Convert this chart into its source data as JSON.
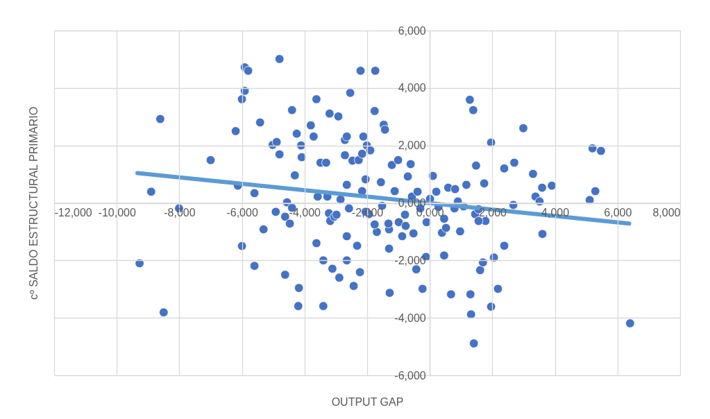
{
  "chart_data": {
    "type": "scatter",
    "xlabel": "OUTPUT GAP",
    "ylabel": "cº SALDO ESTRUCTURAL PRIMARIO",
    "xlim": [
      -12,
      8
    ],
    "ylim": [
      -6,
      6
    ],
    "xticks": [
      {
        "value": -12,
        "label": "-12,000"
      },
      {
        "value": -10,
        "label": "-10,000"
      },
      {
        "value": -8,
        "label": "-8,000"
      },
      {
        "value": -6,
        "label": "-6,000"
      },
      {
        "value": -4,
        "label": "-4,000"
      },
      {
        "value": -2,
        "label": "-2,000"
      },
      {
        "value": 0,
        "label": "0,000"
      },
      {
        "value": 2,
        "label": "2,000"
      },
      {
        "value": 4,
        "label": "4,000"
      },
      {
        "value": 6,
        "label": "6,000"
      },
      {
        "value": 8,
        "label": "8,000"
      }
    ],
    "yticks": [
      {
        "value": -6,
        "label": "-6,000"
      },
      {
        "value": -4,
        "label": "-4,000"
      },
      {
        "value": -2,
        "label": "-2,000"
      },
      {
        "value": 0,
        "label": "0,000"
      },
      {
        "value": 2,
        "label": "2,000"
      },
      {
        "value": 4,
        "label": "4,000"
      },
      {
        "value": 6,
        "label": "6,000"
      }
    ],
    "grid": true,
    "series": [
      {
        "type": "scatter",
        "color": "#4472c4",
        "marker": "circle",
        "x": [
          -9.27,
          -8.9,
          -8.61,
          -8.5,
          -8.01,
          -7,
          -6.13,
          -6,
          -5.91,
          -5.8,
          -5.91,
          -6,
          -6.2,
          -5.6,
          -5.6,
          -5.42,
          -5.31,
          -5.02,
          -4.89,
          -4.8,
          -4.8,
          -4.92,
          -4.62,
          -4.62,
          -4.56,
          -4.47,
          -4.4,
          -4.4,
          -4.31,
          -4.25,
          -4.2,
          -4.18,
          -4.11,
          -4.09,
          -3.8,
          -3.71,
          -3.62,
          -3.62,
          -3.58,
          -3.49,
          -3.4,
          -3.4,
          -3.31,
          -3.27,
          -3.22,
          -3.2,
          -3.18,
          -3.11,
          -3.05,
          -2.98,
          -2.92,
          -2.89,
          -2.85,
          -2.71,
          -2.71,
          -2.65,
          -2.65,
          -2.65,
          -2.65,
          -2.58,
          -2.54,
          -2.47,
          -2.43,
          -2.32,
          -2.27,
          -2.23,
          -2.21,
          -2.16,
          -2.16,
          -2.12,
          -2.05,
          -2.01,
          -1.94,
          -1.9,
          -1.76,
          -1.74,
          -1.69,
          -1.56,
          -1.52,
          -1.47,
          -1.43,
          -1.3,
          -1.28,
          -1.3,
          -1.21,
          -1.12,
          -1.01,
          -0.88,
          -0.79,
          -0.7,
          -0.61,
          -0.57,
          -0.52,
          -0.43,
          -0.39,
          -0.23,
          -0.12,
          0.01,
          0.1,
          0.21,
          0.39,
          0.46,
          0.52,
          0.59,
          0.68,
          0.81,
          0.9,
          0.97,
          1.17,
          1.28,
          1.3,
          1.32,
          1.39,
          1.41,
          1.45,
          1.48,
          1.61,
          1.7,
          1.74,
          1.96,
          1.96,
          2.05,
          2.18,
          2.38,
          2.38,
          2.67,
          2.7,
          2.99,
          3.3,
          3.38,
          3.51,
          3.59,
          3.6,
          3.9,
          5.11,
          5.2,
          5.29,
          5.47,
          6.4,
          -2.05,
          -1.76,
          -1.32,
          -0.99,
          -0.77,
          -0.3,
          -0.1,
          0.28,
          0.46,
          0.79,
          1.08,
          1.56,
          1.78,
          1.56
        ],
        "values": [
          -2.1,
          0.39,
          2.92,
          -3.81,
          -0.19,
          1.49,
          0.6,
          3.61,
          4.72,
          4.6,
          3.9,
          -1.5,
          2.5,
          0.34,
          -2.19,
          2.8,
          -0.92,
          2.02,
          2.12,
          5.01,
          1.69,
          -0.31,
          -0.48,
          -2.5,
          0.02,
          -0.72,
          3.23,
          -0.17,
          0.96,
          2.41,
          -3.59,
          -2.96,
          2,
          1.59,
          2.7,
          2.31,
          3.61,
          -1.4,
          0.22,
          1.4,
          -2,
          -3.59,
          1.4,
          0.22,
          -0.36,
          3.11,
          -0.63,
          -2.29,
          -0.48,
          -0.41,
          3.01,
          -2.6,
          0.12,
          1.66,
          2.19,
          2.31,
          0.63,
          -1.16,
          -2,
          -0.19,
          3.83,
          1.47,
          -2.89,
          -1.49,
          1.49,
          -2.41,
          4.6,
          1.71,
          0.41,
          2.31,
          0.82,
          2,
          -0.39,
          1.83,
          3.2,
          4.6,
          -1.01,
          0.72,
          -0.1,
          2.72,
          2.55,
          -0.92,
          -3.13,
          -1.59,
          1.32,
          0.41,
          1.49,
          -1.16,
          -0.41,
          0.92,
          1.35,
          0.22,
          -1.06,
          -2.31,
          0.39,
          -2.99,
          -1.88,
          0.14,
          0.94,
          0.39,
          -1.04,
          -1.83,
          -0.87,
          0.53,
          -3.18,
          0.48,
          0.05,
          -0.99,
          0.63,
          3.59,
          -3.18,
          -3.88,
          3.23,
          -4.89,
          -0.39,
          1.3,
          -2.34,
          -2.07,
          0.68,
          2.1,
          -3.61,
          -1.9,
          -2.99,
          1.2,
          -1.49,
          -0.07,
          1.4,
          2.6,
          1.01,
          0.22,
          0.05,
          0.53,
          -1.08,
          0.6,
          0.1,
          1.9,
          0.41,
          1.81,
          -4.19,
          -0.31,
          -0.75,
          -0.72,
          -0.67,
          -0.8,
          -0.19,
          -0.67,
          -0.14,
          -0.55,
          -0.19,
          -0.12,
          -0.22,
          -0.63,
          -0.63
        ]
      },
      {
        "type": "line",
        "color": "#5b9bd5",
        "x": [
          -9.34,
          6.37
        ],
        "values": [
          1.04,
          -0.72
        ]
      }
    ]
  }
}
